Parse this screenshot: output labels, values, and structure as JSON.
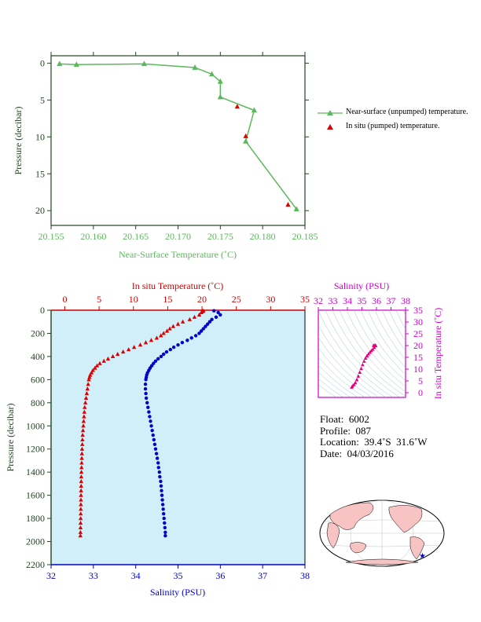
{
  "colors": {
    "near_surface": "#5cb85c",
    "in_situ": "#dd0000",
    "temperature_axis": "#cc0000",
    "salinity": "#0000cc",
    "salinity_axis_inset": "#cc00cc",
    "panel_bg": "#d0eff8",
    "axis_dark": "#234323",
    "map_land": "#f7c3c3"
  },
  "chart_data": [
    {
      "type": "line",
      "xlabel": "Near-Surface Temperature (˚C)",
      "ylabel": "Pressure (decibar)",
      "xlim": [
        20.155,
        20.185
      ],
      "ylim": [
        22,
        -1
      ],
      "xticks": [
        "20.155",
        "20.160",
        "20.165",
        "20.170",
        "20.175",
        "20.180",
        "20.185"
      ],
      "yticks": [
        "0",
        "5",
        "10",
        "15",
        "20"
      ],
      "series": [
        {
          "name": "Near-surface (unpumped) temperature.",
          "marker": "triangle",
          "x": [
            20.156,
            20.158,
            20.166,
            20.172,
            20.174,
            20.175,
            20.175,
            20.179,
            20.178,
            20.184
          ],
          "y": [
            0.1,
            0.2,
            0.1,
            0.6,
            1.5,
            2.5,
            4.6,
            6.4,
            10.6,
            19.8
          ]
        },
        {
          "name": "In situ (pumped) temperature.",
          "marker": "triangle",
          "x": [
            20.177,
            20.178,
            20.183
          ],
          "y": [
            5.9,
            9.9,
            19.2
          ]
        }
      ],
      "legend": "right"
    },
    {
      "type": "scatter",
      "ylabel": "Pressure (decibar)",
      "ylim": [
        2200,
        0
      ],
      "yticks": [
        "0",
        "200",
        "400",
        "600",
        "800",
        "1000",
        "1200",
        "1400",
        "1600",
        "1800",
        "2000",
        "2200"
      ],
      "x_top_label": "In situ Temperature (˚C)",
      "x_top_lim": [
        -2,
        35
      ],
      "x_top_ticks": [
        "0",
        "5",
        "10",
        "15",
        "20",
        "25",
        "30",
        "35"
      ],
      "x_bottom_label": "Salinity (PSU)",
      "x_bottom_lim": [
        32,
        38
      ],
      "x_bottom_ticks": [
        "32",
        "33",
        "34",
        "35",
        "36",
        "37",
        "38"
      ],
      "temperature": {
        "p": [
          5,
          10,
          20,
          40,
          60,
          80,
          100,
          120,
          140,
          160,
          180,
          200,
          220,
          240,
          260,
          280,
          300,
          320,
          340,
          360,
          380,
          400,
          420,
          440,
          460,
          480,
          500,
          520,
          540,
          560,
          580,
          600,
          640,
          680,
          720,
          760,
          800,
          840,
          880,
          920,
          960,
          1000,
          1040,
          1080,
          1120,
          1160,
          1200,
          1240,
          1280,
          1320,
          1360,
          1400,
          1440,
          1480,
          1520,
          1560,
          1600,
          1640,
          1680,
          1720,
          1760,
          1800,
          1840,
          1880,
          1920,
          1950
        ],
        "t": [
          20.2,
          20.1,
          19.9,
          19.6,
          18.9,
          18.2,
          17.2,
          16.5,
          15.8,
          15.3,
          14.9,
          14.4,
          14.0,
          13.4,
          12.6,
          11.8,
          11.0,
          10.1,
          9.3,
          8.5,
          7.7,
          7.0,
          6.3,
          5.7,
          5.1,
          4.7,
          4.4,
          4.1,
          3.9,
          3.7,
          3.6,
          3.5,
          3.4,
          3.3,
          3.2,
          3.1,
          3.0,
          2.9,
          2.85,
          2.8,
          2.75,
          2.7,
          2.65,
          2.6,
          2.57,
          2.55,
          2.52,
          2.5,
          2.48,
          2.46,
          2.44,
          2.42,
          2.4,
          2.39,
          2.38,
          2.37,
          2.36,
          2.35,
          2.34,
          2.33,
          2.32,
          2.31,
          2.3,
          2.29,
          2.28,
          2.27
        ]
      },
      "salinity": {
        "p": [
          5,
          20,
          40,
          60,
          80,
          100,
          120,
          140,
          160,
          180,
          200,
          220,
          240,
          260,
          280,
          300,
          320,
          340,
          360,
          380,
          400,
          420,
          440,
          460,
          480,
          500,
          520,
          540,
          560,
          580,
          600,
          640,
          680,
          720,
          760,
          800,
          840,
          880,
          920,
          960,
          1000,
          1040,
          1080,
          1120,
          1160,
          1200,
          1240,
          1280,
          1320,
          1360,
          1400,
          1440,
          1480,
          1520,
          1560,
          1600,
          1640,
          1680,
          1720,
          1760,
          1800,
          1840,
          1880,
          1920,
          1950
        ],
        "s": [
          35.85,
          35.95,
          36.0,
          35.9,
          35.8,
          35.75,
          35.7,
          35.65,
          35.6,
          35.55,
          35.5,
          35.42,
          35.32,
          35.22,
          35.1,
          35.0,
          34.9,
          34.82,
          34.73,
          34.66,
          34.6,
          34.53,
          34.47,
          34.42,
          34.38,
          34.34,
          34.31,
          34.28,
          34.26,
          34.25,
          34.24,
          34.23,
          34.23,
          34.24,
          34.25,
          34.27,
          34.29,
          34.31,
          34.33,
          34.35,
          34.37,
          34.39,
          34.41,
          34.43,
          34.45,
          34.47,
          34.49,
          34.51,
          34.53,
          34.54,
          34.56,
          34.57,
          34.59,
          34.6,
          34.61,
          34.62,
          34.63,
          34.64,
          34.65,
          34.66,
          34.67,
          34.68,
          34.69,
          34.7,
          34.7
        ]
      }
    },
    {
      "type": "scatter",
      "xlabel": "Salinity (PSU)",
      "ylabel": "In situ Temperature (˚C)",
      "xlim": [
        32,
        38
      ],
      "ylim": [
        -2,
        35
      ],
      "xticks": [
        "32",
        "33",
        "34",
        "35",
        "36",
        "37",
        "38"
      ],
      "yticks": [
        "0",
        "5",
        "10",
        "15",
        "20",
        "25",
        "30",
        "35"
      ],
      "s": [
        34.3,
        34.35,
        34.45,
        34.55,
        34.65,
        34.75,
        34.85,
        34.95,
        35.05,
        35.15,
        35.25,
        35.35,
        35.45,
        35.55,
        35.65,
        35.75,
        35.85,
        35.95,
        35.9,
        35.8
      ],
      "t": [
        2.3,
        2.8,
        3.4,
        4.2,
        5.5,
        7.0,
        8.6,
        10.2,
        11.8,
        13.3,
        14.6,
        15.6,
        16.4,
        17.1,
        17.8,
        18.4,
        19.2,
        19.9,
        20.2,
        20.0
      ]
    }
  ],
  "float_info": {
    "float": "Float:  6002",
    "profile": "Profile:  087",
    "location": "Location:  39.4˚S  31.6˚W",
    "date": "Date:  04/03/2016"
  }
}
